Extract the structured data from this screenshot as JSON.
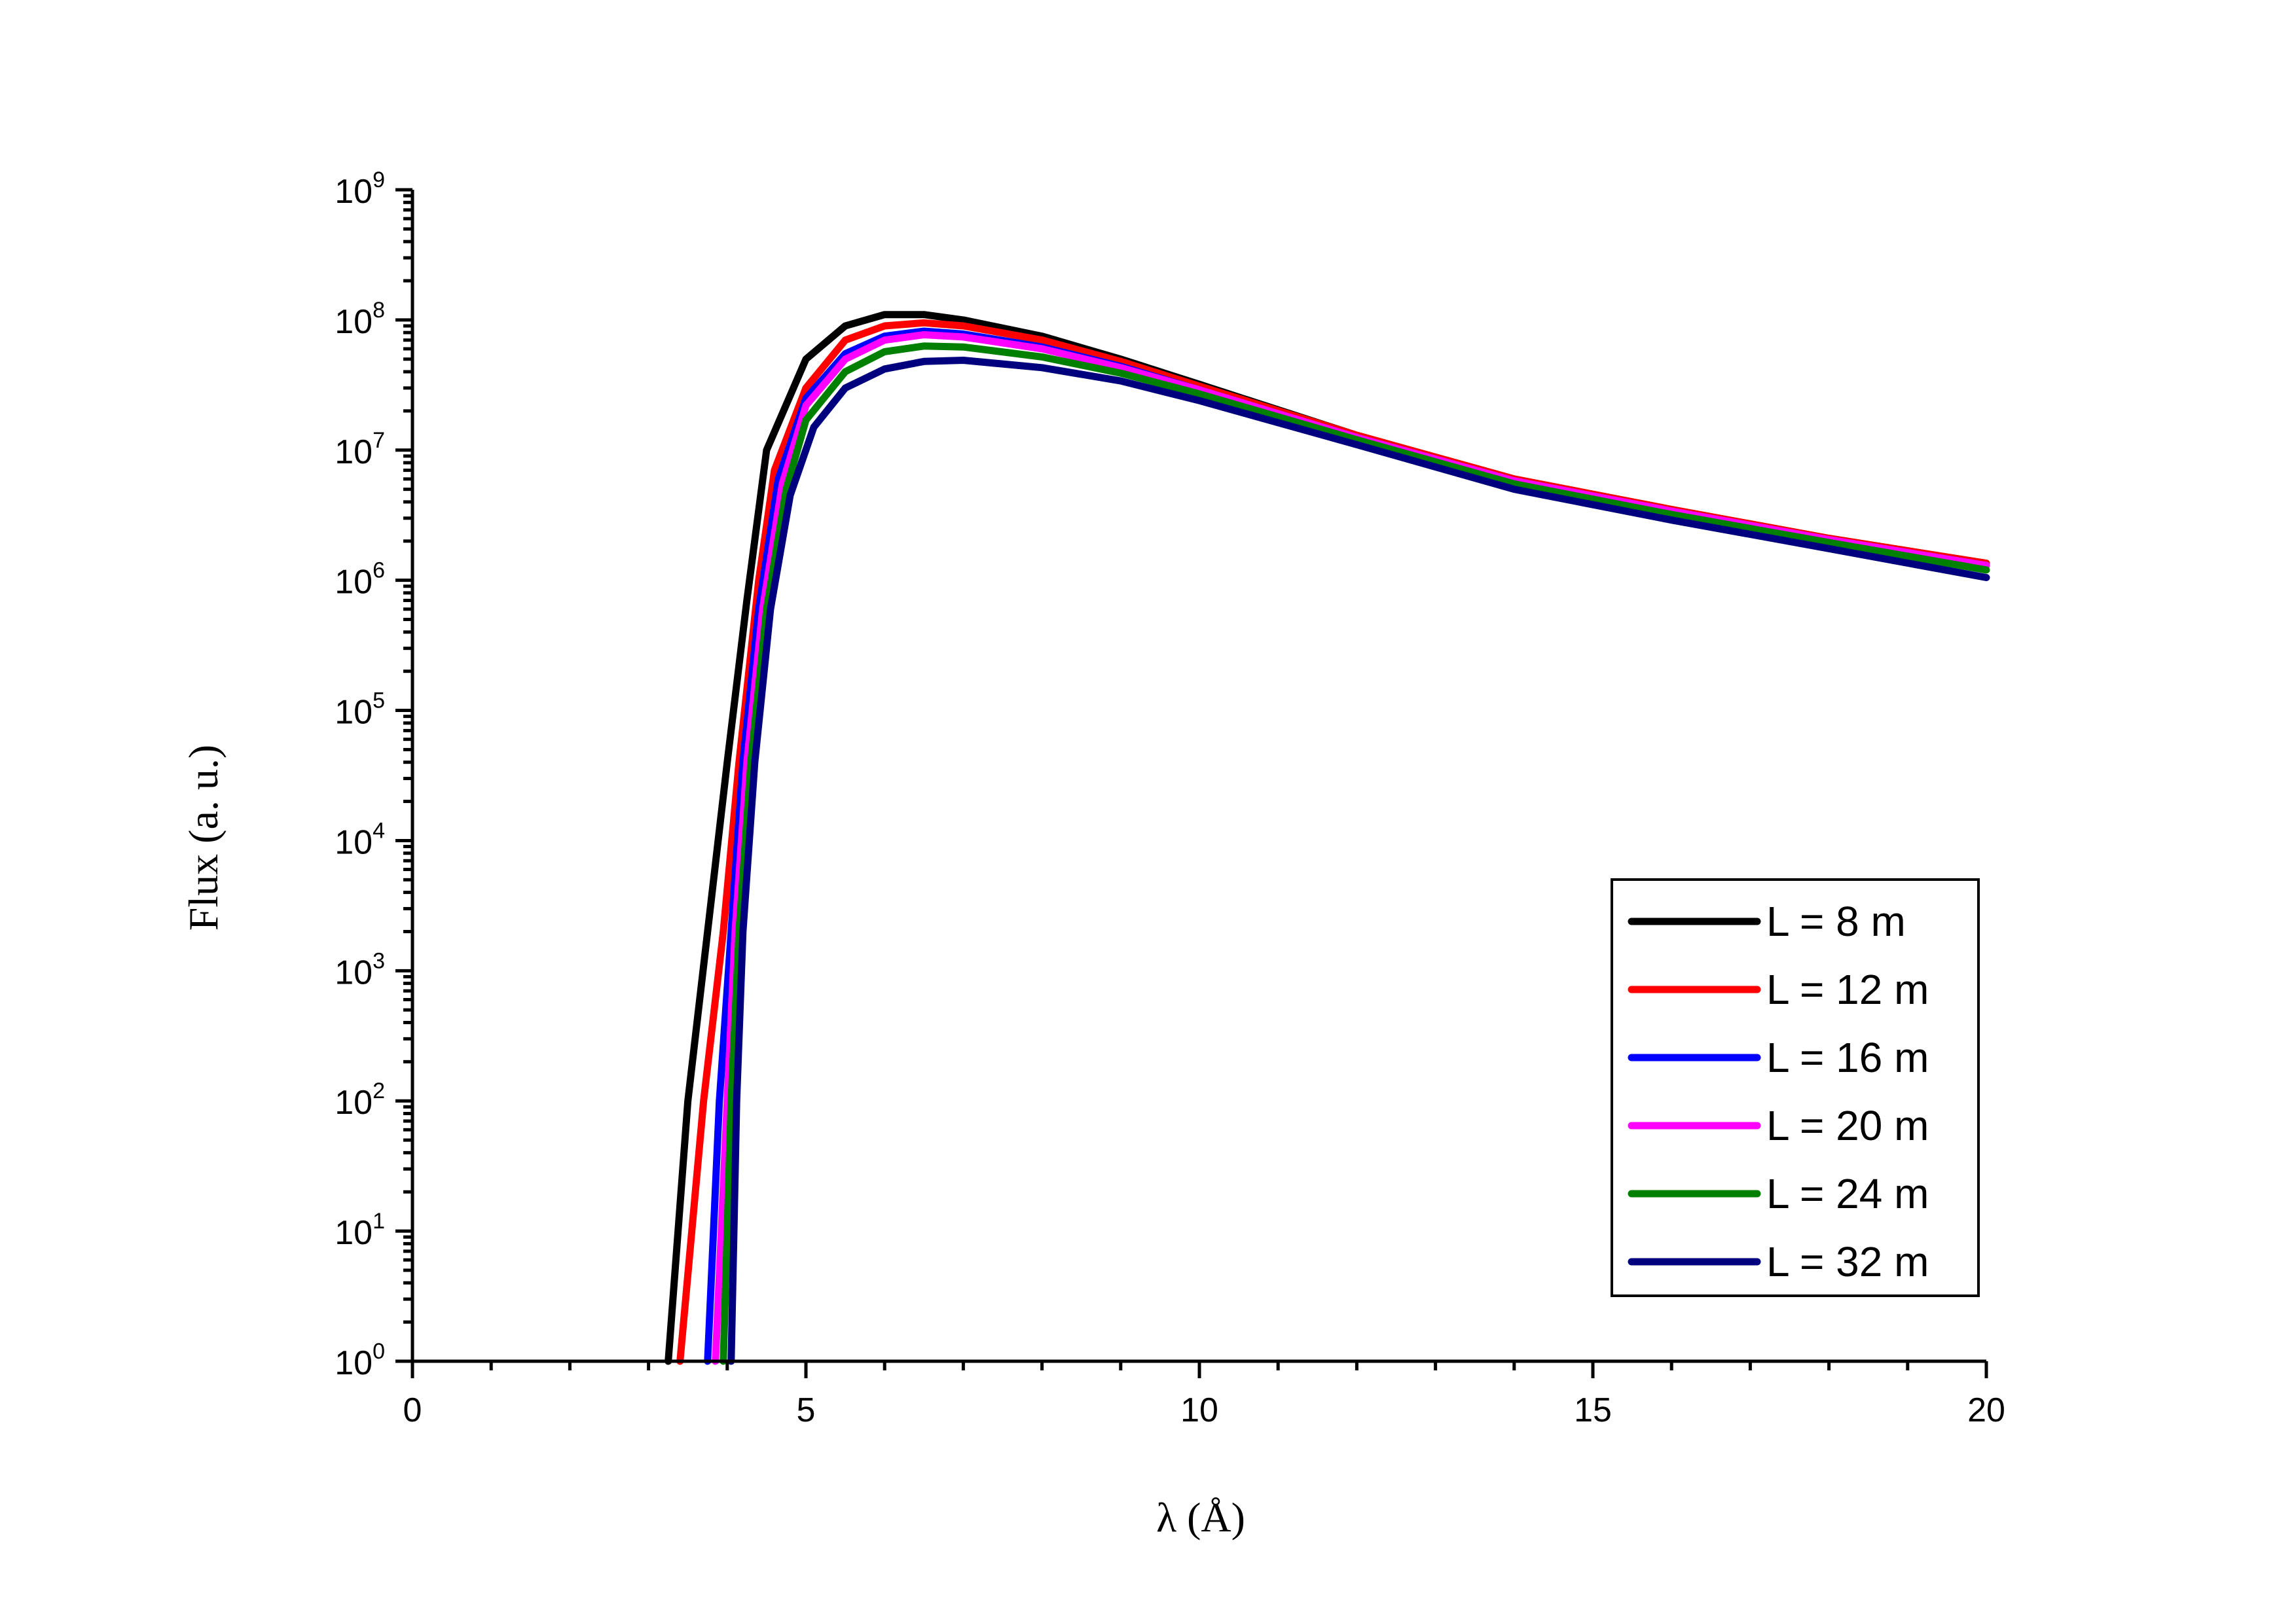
{
  "chart_data": {
    "type": "line",
    "xlabel": "λ (Å)",
    "ylabel": "Flux (a. u.)",
    "xlim": [
      0,
      20
    ],
    "ylim": [
      1,
      1000000000
    ],
    "yscale": "log",
    "x_ticks": [
      "0",
      "5",
      "10",
      "15",
      "20"
    ],
    "y_ticks": [
      {
        "base": "10",
        "exp": "0"
      },
      {
        "base": "10",
        "exp": "1"
      },
      {
        "base": "10",
        "exp": "2"
      },
      {
        "base": "10",
        "exp": "3"
      },
      {
        "base": "10",
        "exp": "4"
      },
      {
        "base": "10",
        "exp": "5"
      },
      {
        "base": "10",
        "exp": "6"
      },
      {
        "base": "10",
        "exp": "7"
      },
      {
        "base": "10",
        "exp": "8"
      },
      {
        "base": "10",
        "exp": "9"
      }
    ],
    "grid": false,
    "legend_position": "bottom-right",
    "series": [
      {
        "name": "L = 8 m",
        "color": "#000000",
        "x": [
          3.25,
          3.5,
          3.75,
          4.0,
          4.25,
          4.5,
          5.0,
          5.5,
          6.0,
          6.5,
          7.0,
          8.0,
          9.0,
          10.0,
          12.0,
          14.0,
          16.0,
          18.0,
          20.0
        ],
        "y": [
          1,
          100,
          2000,
          40000,
          700000,
          10000000,
          50000000,
          90000000,
          110000000,
          110000000,
          100000000,
          75000000,
          50000000,
          32000000,
          13000000,
          6000000,
          3500000,
          2100000,
          1350000
        ]
      },
      {
        "name": "L = 12 m",
        "color": "#ff0000",
        "x": [
          3.4,
          3.7,
          3.95,
          4.15,
          4.4,
          4.6,
          5.0,
          5.5,
          6.0,
          6.5,
          7.0,
          8.0,
          9.0,
          10.0,
          12.0,
          14.0,
          16.0,
          18.0,
          20.0
        ],
        "y": [
          1,
          100,
          2000,
          40000,
          1000000,
          7000000,
          30000000,
          70000000,
          90000000,
          95000000,
          90000000,
          70000000,
          48000000,
          31000000,
          13000000,
          6000000,
          3500000,
          2100000,
          1350000
        ]
      },
      {
        "name": "L = 16 m",
        "color": "#0000ff",
        "x": [
          3.75,
          3.9,
          4.05,
          4.2,
          4.4,
          4.65,
          5.0,
          5.5,
          6.0,
          6.5,
          7.0,
          8.0,
          9.0,
          10.0,
          12.0,
          14.0,
          16.0,
          18.0,
          20.0
        ],
        "y": [
          1,
          100,
          2000,
          40000,
          600000,
          6000000,
          25000000,
          55000000,
          75000000,
          82000000,
          78000000,
          62000000,
          44000000,
          29000000,
          12500000,
          5800000,
          3400000,
          2050000,
          1300000
        ]
      },
      {
        "name": "L = 20 m",
        "color": "#ff00ff",
        "x": [
          3.85,
          4.0,
          4.1,
          4.25,
          4.45,
          4.7,
          5.0,
          5.5,
          6.0,
          6.5,
          7.0,
          8.0,
          9.0,
          10.0,
          12.0,
          14.0,
          16.0,
          18.0,
          20.0
        ],
        "y": [
          1,
          100,
          2000,
          40000,
          600000,
          5500000,
          22000000,
          50000000,
          70000000,
          77000000,
          74000000,
          60000000,
          43000000,
          29000000,
          12500000,
          5800000,
          3400000,
          2050000,
          1300000
        ]
      },
      {
        "name": "L = 24 m",
        "color": "#008000",
        "x": [
          3.95,
          4.05,
          4.15,
          4.3,
          4.5,
          4.75,
          5.0,
          5.5,
          6.0,
          6.5,
          7.0,
          8.0,
          9.0,
          10.0,
          12.0,
          14.0,
          16.0,
          18.0,
          20.0
        ],
        "y": [
          1,
          100,
          2000,
          40000,
          600000,
          5000000,
          17000000,
          40000000,
          57000000,
          63000000,
          62000000,
          52000000,
          39000000,
          27000000,
          12000000,
          5500000,
          3200000,
          1950000,
          1200000
        ]
      },
      {
        "name": "L = 32 m",
        "color": "#00007f",
        "x": [
          4.05,
          4.12,
          4.2,
          4.35,
          4.55,
          4.8,
          5.1,
          5.5,
          6.0,
          6.5,
          7.0,
          8.0,
          9.0,
          10.0,
          12.0,
          14.0,
          16.0,
          18.0,
          20.0
        ],
        "y": [
          1,
          100,
          2000,
          40000,
          600000,
          4500000,
          15000000,
          30000000,
          42000000,
          48000000,
          49000000,
          43000000,
          34000000,
          24000000,
          11000000,
          5000000,
          2900000,
          1750000,
          1050000
        ]
      }
    ]
  }
}
